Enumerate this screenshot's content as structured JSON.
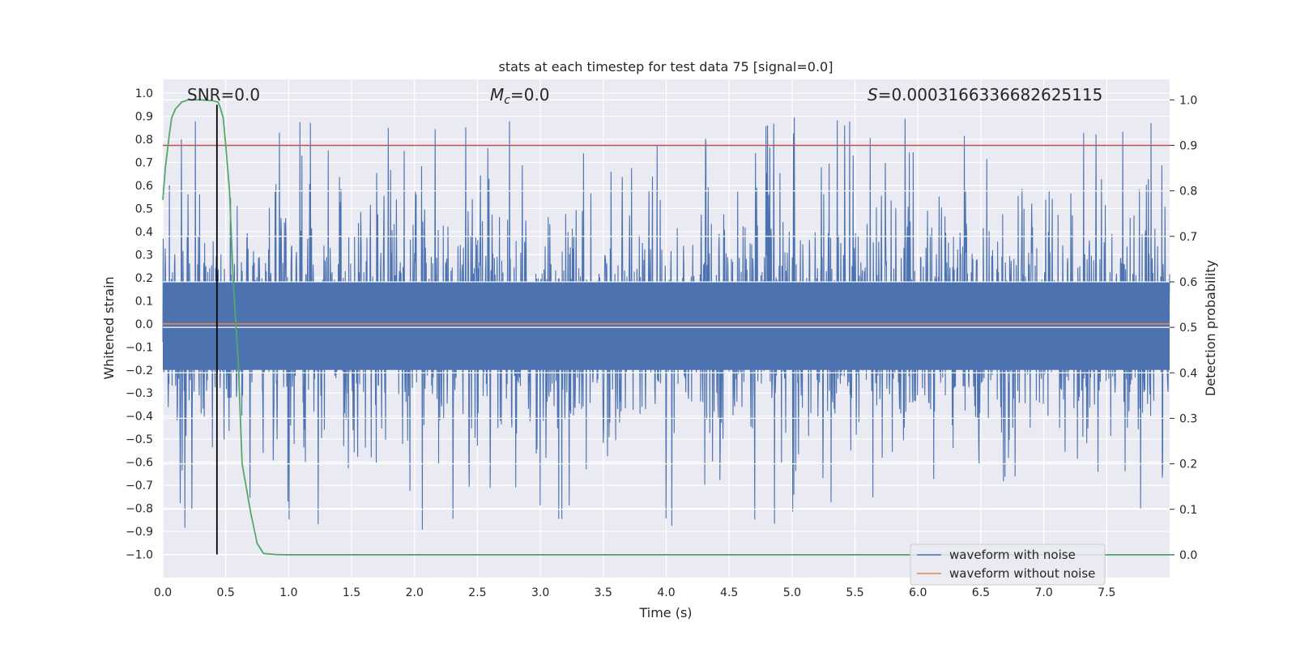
{
  "chart_data": {
    "type": "line",
    "title": "stats at each timestep for test data 75 [signal=0.0]",
    "xlabel": "Time (s)",
    "ylabel": "Whitened strain",
    "ylabel_right": "Detection probability",
    "xlim": [
      0.0,
      8.0
    ],
    "ylim": [
      -1.1,
      1.06
    ],
    "ylim_right": [
      -0.05,
      1.045
    ],
    "x_ticks": [
      "0.0",
      "0.5",
      "1.0",
      "1.5",
      "2.0",
      "2.5",
      "3.0",
      "3.5",
      "4.0",
      "4.5",
      "5.0",
      "5.5",
      "6.0",
      "6.5",
      "7.0",
      "7.5"
    ],
    "y_ticks": [
      "1.0",
      "0.9",
      "0.8",
      "0.7",
      "0.6",
      "0.5",
      "0.4",
      "0.3",
      "0.2",
      "0.1",
      "0.0",
      "-0.1",
      "-0.2",
      "-0.3",
      "-0.4",
      "-0.5",
      "-0.6",
      "-0.7",
      "-0.8",
      "-0.9",
      "-1.0"
    ],
    "y_ticks_right": [
      "1.0",
      "0.9",
      "0.8",
      "0.7",
      "0.6",
      "0.5",
      "0.4",
      "0.3",
      "0.2",
      "0.1",
      "0.0"
    ],
    "grid": true,
    "annotations": {
      "snr": "SNR=0.0",
      "mc_symbol": "M",
      "mc_sub": "c",
      "mc_value": "=0.0",
      "s_symbol": "S",
      "s_value": "=0.0003166336682625115"
    },
    "series": [
      {
        "name": "waveform with noise",
        "color": "#4c72b0",
        "kind": "noise",
        "x_range": [
          0.0,
          8.0
        ],
        "typical_abs": 0.3,
        "peak_range": [
          -0.93,
          0.97
        ]
      },
      {
        "name": "waveform without noise",
        "color": "#dd8452",
        "kind": "constant",
        "value": 0.0
      }
    ],
    "detection_probability": {
      "color": "#55a868",
      "axis": "right",
      "x": [
        0.0,
        0.02,
        0.05,
        0.07,
        0.1,
        0.15,
        0.2,
        0.3,
        0.4,
        0.44,
        0.46,
        0.48,
        0.5,
        0.53,
        0.56,
        0.6,
        0.63,
        0.7,
        0.75,
        0.8,
        0.9,
        1.0,
        1.5,
        8.0
      ],
      "y": [
        0.78,
        0.85,
        0.92,
        0.96,
        0.98,
        0.995,
        1.0,
        1.0,
        0.998,
        0.995,
        0.98,
        0.96,
        0.9,
        0.8,
        0.6,
        0.42,
        0.2,
        0.09,
        0.025,
        0.003,
        0.0005,
        0.0,
        0.0,
        0.0
      ]
    },
    "threshold": {
      "value": 0.9,
      "axis": "right",
      "color": "#c44e52"
    },
    "marker_time": {
      "value": 0.43,
      "color": "#000000"
    },
    "legend_placement": "lower-right",
    "legend": [
      {
        "label": "waveform with noise",
        "color": "#4c72b0"
      },
      {
        "label": "waveform without noise",
        "color": "#dd8452"
      }
    ]
  }
}
